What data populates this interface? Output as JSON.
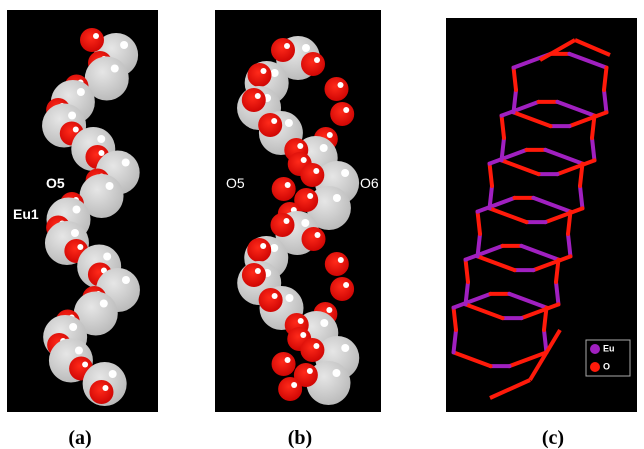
{
  "panels": [
    {
      "label": "(a)",
      "annotations": [
        "O5",
        "Eu1"
      ]
    },
    {
      "label": "(b)",
      "annotations": [
        "O5",
        "O6"
      ]
    },
    {
      "label": "(c)",
      "legend": [
        "Eu",
        "O"
      ]
    }
  ]
}
